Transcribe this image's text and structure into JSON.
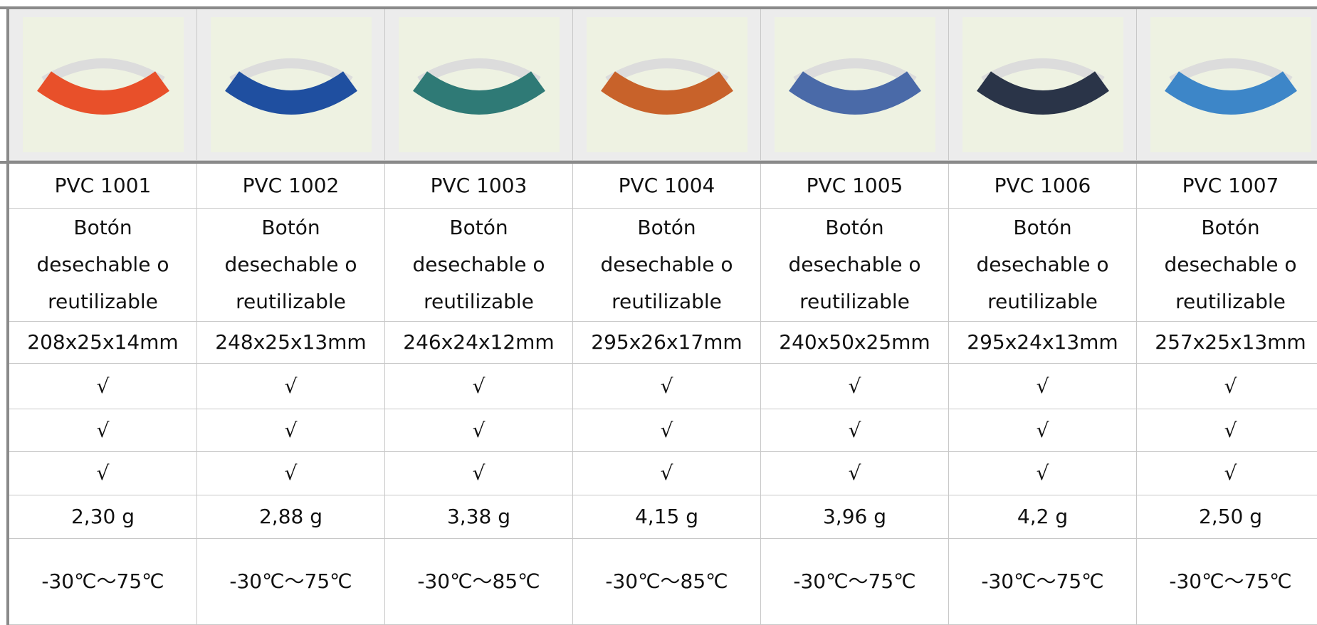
{
  "products": [
    {
      "model": "PVC 1001",
      "description": [
        "Botón",
        "desechable o",
        "reutilizable"
      ],
      "size": "208x25x14mm",
      "checks": [
        "√",
        "√",
        "√"
      ],
      "weight": "2,30 g",
      "temperature": "-30℃～75℃",
      "color": "#e8502a"
    },
    {
      "model": "PVC 1002",
      "description": [
        "Botón",
        "desechable o",
        "reutilizable"
      ],
      "size": "248x25x13mm",
      "checks": [
        "√",
        "√",
        "√"
      ],
      "weight": "2,88 g",
      "temperature": "-30℃～75℃",
      "color": "#1f4fa0"
    },
    {
      "model": "PVC 1003",
      "description": [
        "Botón",
        "desechable o",
        "reutilizable"
      ],
      "size": "246x24x12mm",
      "checks": [
        "√",
        "√",
        "√"
      ],
      "weight": "3,38 g",
      "temperature": "-30℃～85℃",
      "color": "#2f7a76"
    },
    {
      "model": "PVC 1004",
      "description": [
        "Botón",
        "desechable o",
        "reutilizable"
      ],
      "size": "295x26x17mm",
      "checks": [
        "√",
        "√",
        "√"
      ],
      "weight": "4,15 g",
      "temperature": "-30℃～85℃",
      "color": "#c8622a"
    },
    {
      "model": "PVC 1005",
      "description": [
        "Botón",
        "desechable o",
        "reutilizable"
      ],
      "size": "240x50x25mm",
      "checks": [
        "√",
        "√",
        "√"
      ],
      "weight": "3,96 g",
      "temperature": "-30℃～75℃",
      "color": "#4a6aa8"
    },
    {
      "model": "PVC 1006",
      "description": [
        "Botón",
        "desechable o",
        "reutilizable"
      ],
      "size": "295x24x13mm",
      "checks": [
        "√",
        "√",
        "√"
      ],
      "weight": "4,2 g",
      "temperature": "-30℃～75℃",
      "color": "#2a3448"
    },
    {
      "model": "PVC 1007",
      "description": [
        "Botón",
        "desechable o",
        "reutilizable"
      ],
      "size": "257x25x13mm",
      "checks": [
        "√",
        "√",
        "√"
      ],
      "weight": "2,50 g",
      "temperature": "-30℃～75℃",
      "color": "#3d86c8"
    }
  ]
}
